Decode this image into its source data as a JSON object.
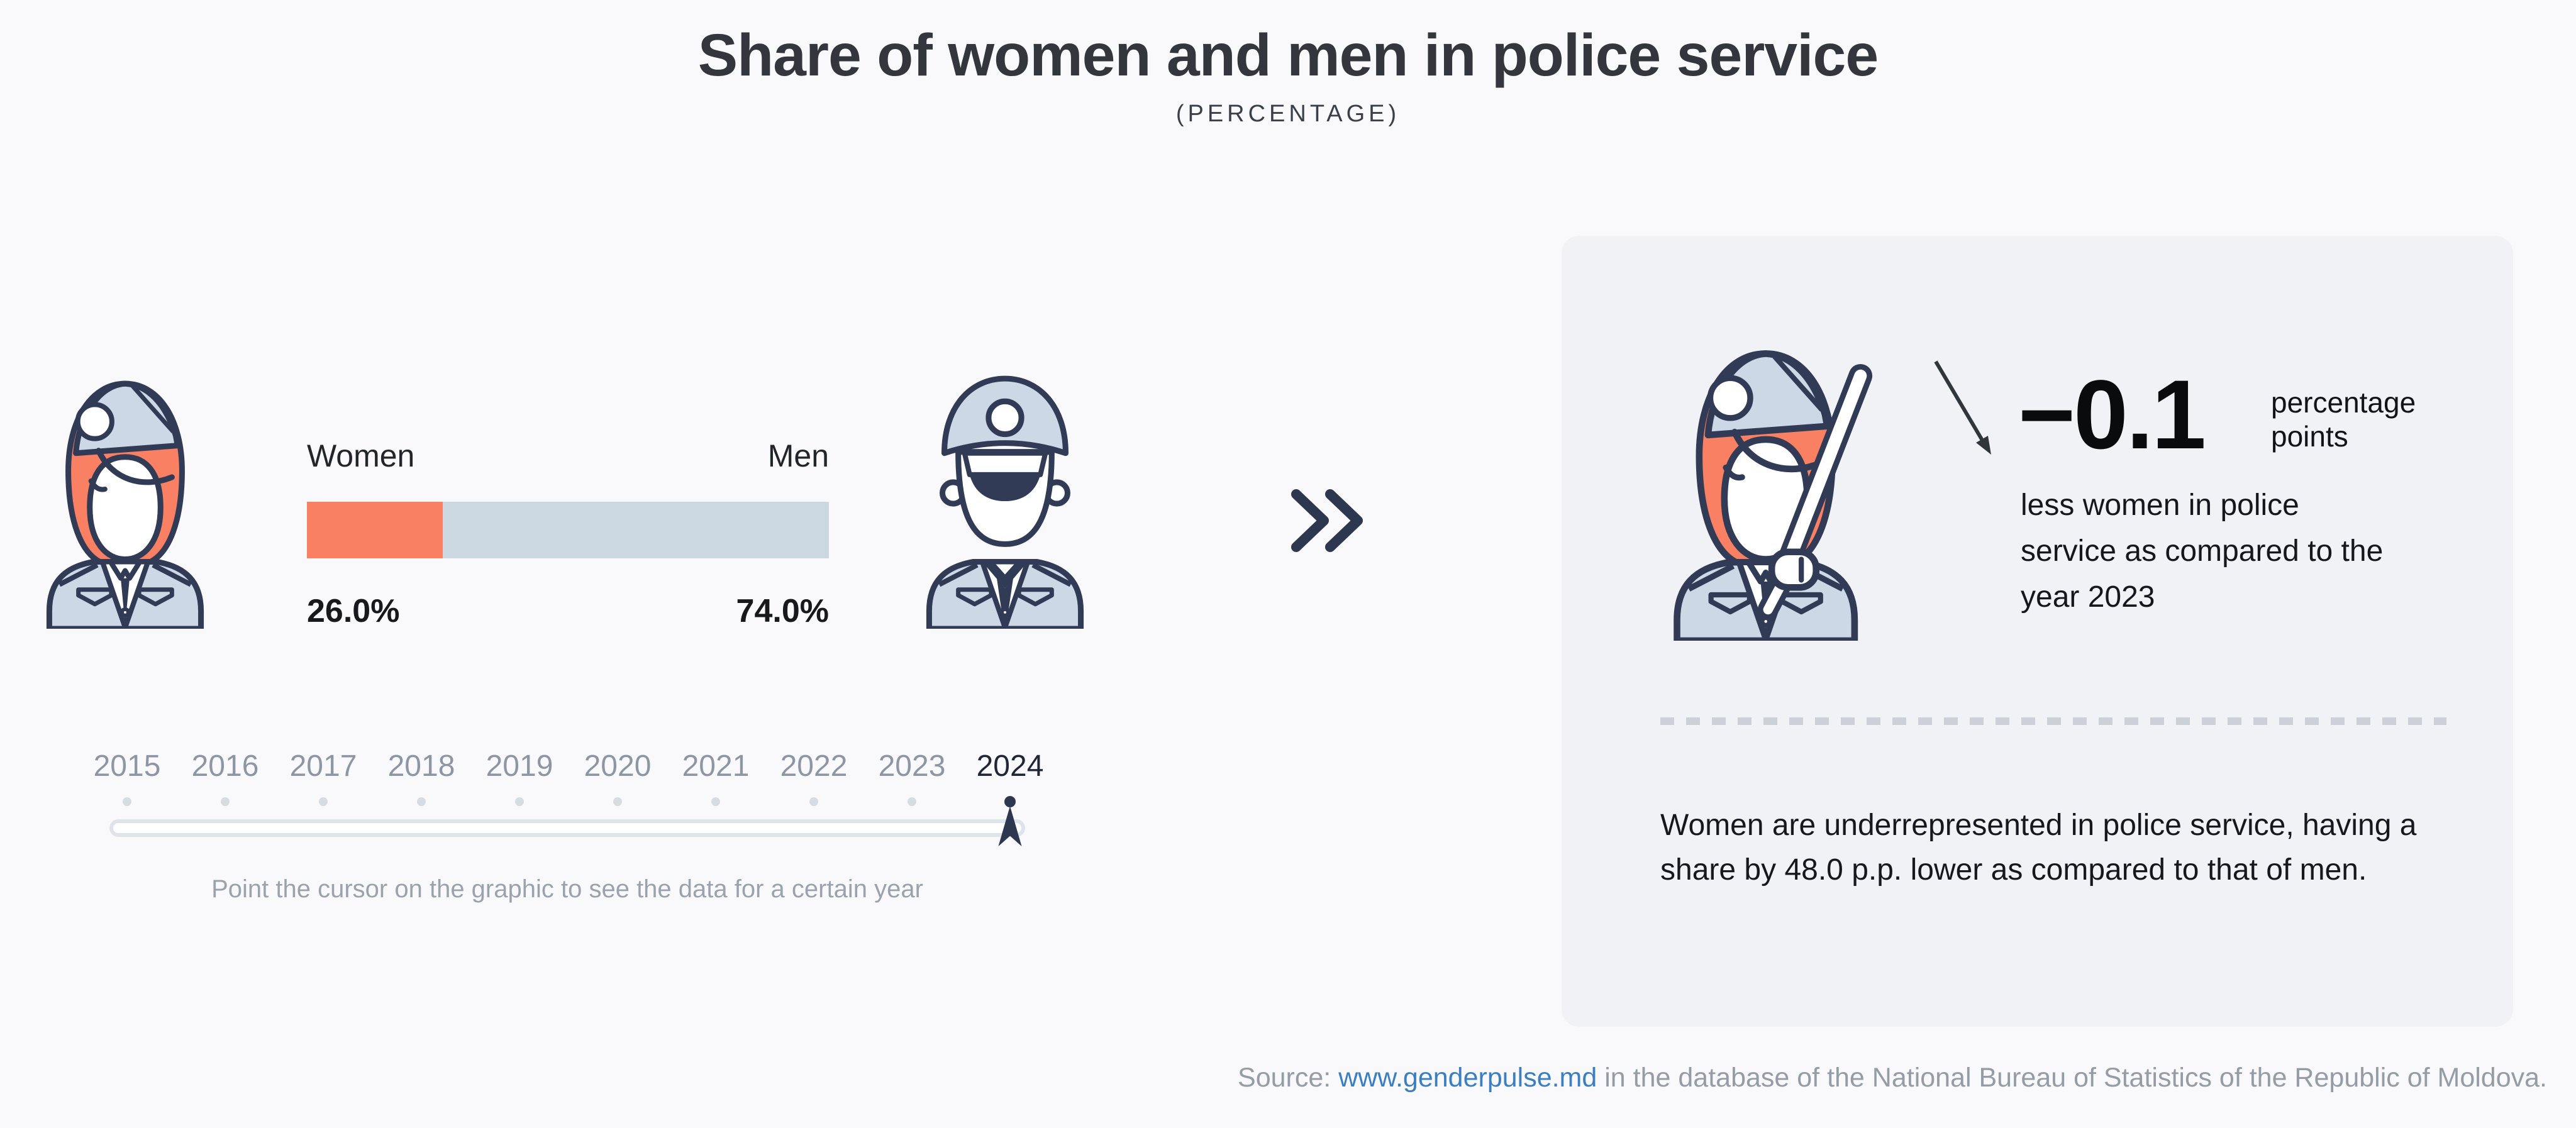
{
  "page": {
    "title": "Share of women and men in police service",
    "subtitle": "(PERCENTAGE)",
    "background_color": "#f9f9fb",
    "card_background_color": "#f1f2f5"
  },
  "colors": {
    "women_accent": "#f98063",
    "men_accent": "#cbd8e2",
    "outline_navy": "#323b56",
    "uniform_blue": "#ccd8e6",
    "year_gray": "#8d97a4",
    "active_year_navy": "#2d3750",
    "hint_gray": "#9aa3ad",
    "link_blue": "#3c7fc0",
    "source_gray": "#949ca6"
  },
  "icons": {
    "left": "policewoman-icon",
    "right": "policeman-icon",
    "card": "policewoman-baton-icon",
    "divider": "double-chevron-right-icon",
    "trend": "arrow-down-right-icon",
    "slider": "year-marker-icon"
  },
  "chart_data": {
    "type": "bar",
    "title": "Share of women and men in police service",
    "subtitle": "(PERCENTAGE)",
    "categories": [
      "Women",
      "Men"
    ],
    "values": [
      26.0,
      74.0
    ],
    "unit": "percent",
    "selected_year": "2024",
    "year_options": [
      2015,
      2016,
      2017,
      2018,
      2019,
      2020,
      2021,
      2022,
      2023,
      2024
    ],
    "change_vs_previous_year_pp": -0.1,
    "gap_pp": 48.0,
    "legend_position": "above-bar",
    "grid": false
  },
  "bar": {
    "women_label": "Women",
    "men_label": "Men",
    "women_value": "26.0%",
    "men_value": "74.0%"
  },
  "timeline": {
    "years": [
      "2015",
      "2016",
      "2017",
      "2018",
      "2019",
      "2020",
      "2021",
      "2022",
      "2023",
      "2024"
    ],
    "selected_year": "2024",
    "hint": "Point the cursor on the graphic to see the data for a certain year"
  },
  "insight": {
    "delta_value": "−0.1",
    "delta_unit": "percentage points",
    "delta_text": "less women in police service as compared to the year 2023",
    "summary": "Women are underrepresented in police service, having a share by 48.0 p.p. lower as compared to that of men."
  },
  "footer": {
    "prefix": "Source: ",
    "link_text": "www.genderpulse.md",
    "suffix": " in the database of the National Bureau of Statistics of the Republic of Moldova."
  }
}
